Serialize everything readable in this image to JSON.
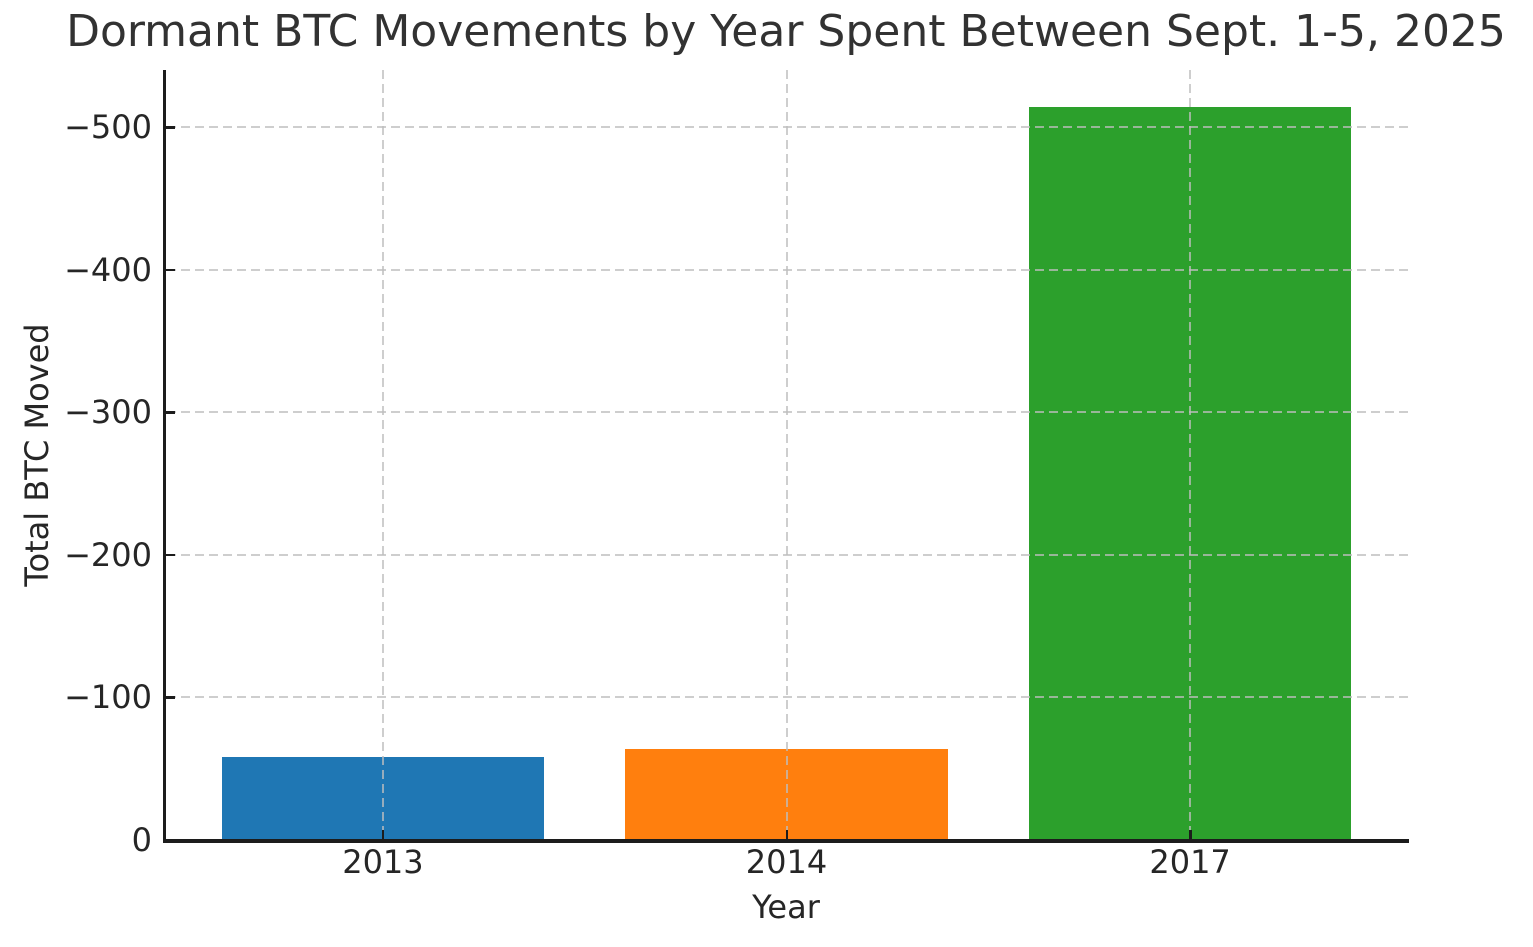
{
  "chart_data": {
    "type": "bar",
    "title": "Dormant BTC Movements by Year Spent Between Sept. 1-5, 2025",
    "xlabel": "Year",
    "ylabel": "Total BTC Moved",
    "categories": [
      "2013",
      "2014",
      "2017"
    ],
    "values": [
      -58,
      -64,
      -514
    ],
    "bar_colors": [
      "#1f77b4",
      "#ff7f0e",
      "#2ca02c"
    ],
    "yticks": [
      0,
      -100,
      -200,
      -300,
      -400,
      -500
    ],
    "ytick_labels": [
      "0",
      "−100",
      "−200",
      "−300",
      "−400",
      "−500"
    ],
    "ylim": [
      0,
      -540
    ],
    "y_axis_inverted": true,
    "bar_width_fraction": 0.8,
    "grid": {
      "axis": "both",
      "linestyle": "dashed",
      "color": "#c8c8c8",
      "above_bars": true
    },
    "legend_position": "none",
    "background": "#ffffff",
    "spine_color": "#1c1c1c",
    "text_color": "#262626"
  }
}
